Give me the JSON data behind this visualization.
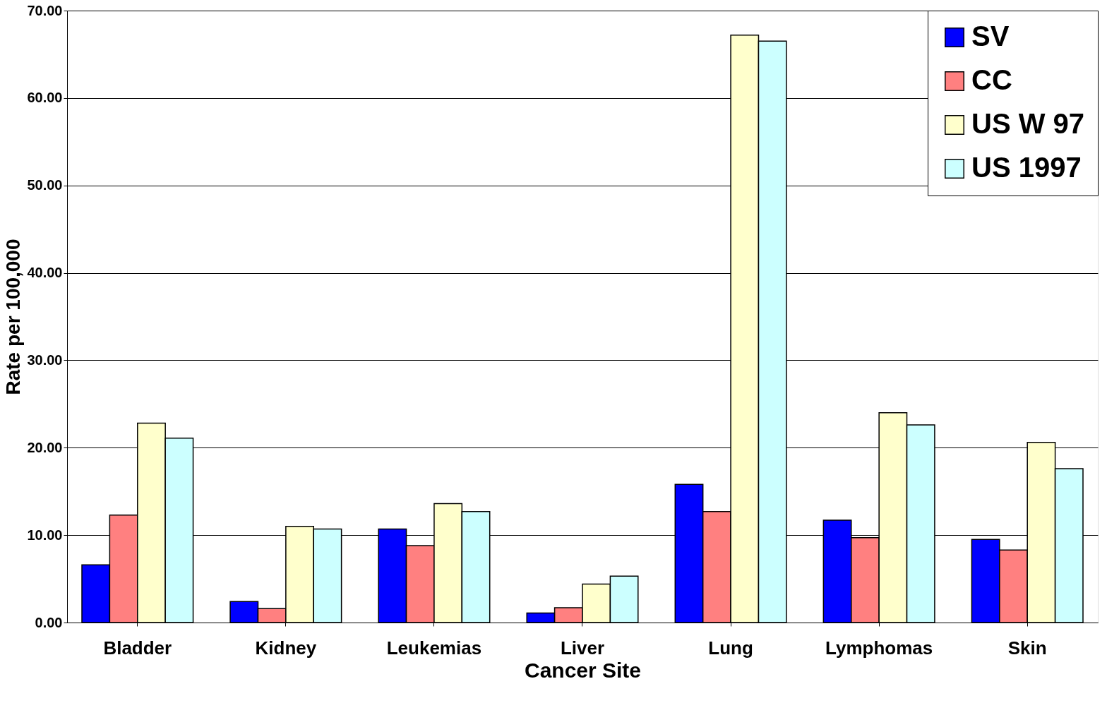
{
  "chart_data": {
    "type": "bar",
    "xlabel": "Cancer Site",
    "ylabel": "Rate per 100,000",
    "categories": [
      "Bladder",
      "Kidney",
      "Leukemias",
      "Liver",
      "Lung",
      "Lymphomas",
      "Skin"
    ],
    "series": [
      {
        "name": "SV",
        "color": "#0000ff",
        "values": [
          6.6,
          2.4,
          10.7,
          1.1,
          15.8,
          11.7,
          9.5
        ]
      },
      {
        "name": "CC",
        "color": "#ff8080",
        "values": [
          12.3,
          1.6,
          8.8,
          1.7,
          12.7,
          9.7,
          8.3
        ]
      },
      {
        "name": "US W 97",
        "color": "#ffffcc",
        "values": [
          22.8,
          11.0,
          13.6,
          4.4,
          67.2,
          24.0,
          20.6
        ]
      },
      {
        "name": "US 1997",
        "color": "#ccffff",
        "values": [
          21.1,
          10.7,
          12.7,
          5.3,
          66.5,
          22.6,
          17.6
        ]
      }
    ],
    "ylim": [
      0,
      70
    ],
    "yticks": [
      {
        "value": 0,
        "label": "0.00"
      },
      {
        "value": 10,
        "label": "10.00"
      },
      {
        "value": 20,
        "label": "20.00"
      },
      {
        "value": 30,
        "label": "30.00"
      },
      {
        "value": 40,
        "label": "40.00"
      },
      {
        "value": 50,
        "label": "50.00"
      },
      {
        "value": 60,
        "label": "60.00"
      },
      {
        "value": 70,
        "label": "70.00"
      }
    ],
    "grid": "y",
    "legend": "top right"
  }
}
